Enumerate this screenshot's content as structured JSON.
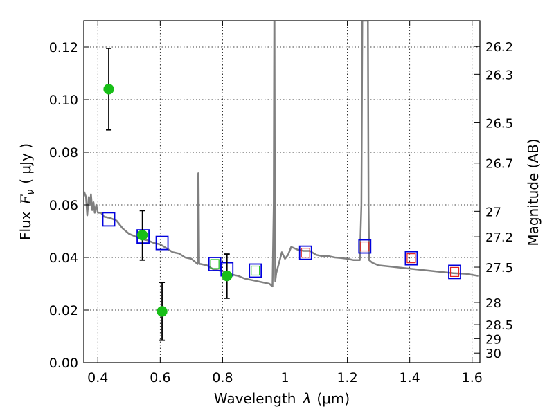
{
  "chart_data": {
    "type": "scatter",
    "title": "",
    "xlabel": "Wavelength",
    "xlabel_symbol": "λ",
    "xlabel_unit": "(μm)",
    "ylabel": "Flux",
    "ylabel_symbol": "F",
    "ylabel_sub": "ν",
    "ylabel_unit": "( μJy )",
    "y2label": "Magnitude (AB)",
    "xlim": [
      0.355,
      1.625
    ],
    "ylim": [
      0.0,
      0.13
    ],
    "grid": true,
    "xticks": [
      0.4,
      0.6,
      0.8,
      1.0,
      1.2,
      1.4,
      1.6
    ],
    "xtick_labels": [
      "0.4",
      "0.6",
      "0.8",
      "1",
      "1.2",
      "1.4",
      "1.6"
    ],
    "yticks": [
      0.0,
      0.02,
      0.04,
      0.06,
      0.08,
      0.1,
      0.12
    ],
    "ytick_labels": [
      "0.00",
      "0.02",
      "0.04",
      "0.06",
      "0.08",
      "0.10",
      "0.12"
    ],
    "mag_ticks": [
      "26.2",
      "26.3",
      "26.5",
      "26.7",
      "27",
      "27.2",
      "27.5",
      "28",
      "28.5",
      "29",
      "30"
    ],
    "series": [
      {
        "name": "photometry",
        "marker": "circle",
        "color": "#18bf18",
        "points": [
          {
            "x": 0.435,
            "y": 0.104,
            "yerr_low": 0.0885,
            "yerr_high": 0.1195
          },
          {
            "x": 0.543,
            "y": 0.0485,
            "yerr_low": 0.039,
            "yerr_high": 0.0578
          },
          {
            "x": 0.606,
            "y": 0.0195,
            "yerr_low": 0.0085,
            "yerr_high": 0.0305
          },
          {
            "x": 0.814,
            "y": 0.033,
            "yerr_low": 0.0245,
            "yerr_high": 0.0413
          }
        ]
      },
      {
        "name": "model_photometry",
        "marker": "square",
        "color": "#0000dd",
        "points": [
          {
            "x": 0.435,
            "y": 0.0545
          },
          {
            "x": 0.545,
            "y": 0.048
          },
          {
            "x": 0.606,
            "y": 0.0455
          },
          {
            "x": 0.775,
            "y": 0.0375
          },
          {
            "x": 0.814,
            "y": 0.0355
          },
          {
            "x": 0.905,
            "y": 0.035
          },
          {
            "x": 1.066,
            "y": 0.0418
          },
          {
            "x": 1.256,
            "y": 0.0442
          },
          {
            "x": 1.405,
            "y": 0.0397
          },
          {
            "x": 1.544,
            "y": 0.0345
          }
        ]
      },
      {
        "name": "inner_square_green",
        "marker": "small-square",
        "color": "#18bf18",
        "points": [
          {
            "x": 0.775,
            "y": 0.0375
          },
          {
            "x": 0.905,
            "y": 0.035
          }
        ]
      },
      {
        "name": "inner_square_red",
        "marker": "small-square",
        "color": "#e02020",
        "points": [
          {
            "x": 1.066,
            "y": 0.0418
          },
          {
            "x": 1.256,
            "y": 0.0442
          },
          {
            "x": 1.405,
            "y": 0.0397
          },
          {
            "x": 1.544,
            "y": 0.0345
          }
        ]
      },
      {
        "name": "model_spectrum",
        "marker": "line",
        "color": "#808080",
        "x": [
          0.356,
          0.362,
          0.366,
          0.371,
          0.374,
          0.378,
          0.382,
          0.386,
          0.39,
          0.395,
          0.4,
          0.41,
          0.42,
          0.44,
          0.46,
          0.48,
          0.5,
          0.52,
          0.54,
          0.56,
          0.58,
          0.6,
          0.62,
          0.64,
          0.66,
          0.68,
          0.7,
          0.715,
          0.72,
          0.722,
          0.723,
          0.725,
          0.727,
          0.73,
          0.75,
          0.77,
          0.79,
          0.81,
          0.83,
          0.85,
          0.87,
          0.89,
          0.91,
          0.93,
          0.95,
          0.96,
          0.964,
          0.9655,
          0.9665,
          0.9675,
          0.969,
          0.972,
          0.98,
          0.99,
          1.0,
          1.01,
          1.02,
          1.04,
          1.06,
          1.08,
          1.1,
          1.12,
          1.14,
          1.16,
          1.18,
          1.2,
          1.22,
          1.24,
          1.245,
          1.248,
          1.25,
          1.262,
          1.266,
          1.268,
          1.27,
          1.28,
          1.3,
          1.34,
          1.38,
          1.42,
          1.46,
          1.5,
          1.54,
          1.58,
          1.62
        ],
        "y": [
          0.065,
          0.063,
          0.056,
          0.063,
          0.06,
          0.064,
          0.058,
          0.061,
          0.057,
          0.06,
          0.057,
          0.057,
          0.0555,
          0.055,
          0.054,
          0.051,
          0.049,
          0.048,
          0.047,
          0.0465,
          0.0455,
          0.045,
          0.0435,
          0.042,
          0.0415,
          0.04,
          0.0395,
          0.038,
          0.0375,
          0.072,
          0.072,
          0.038,
          0.0375,
          0.0375,
          0.037,
          0.0355,
          0.035,
          0.0345,
          0.0335,
          0.033,
          0.032,
          0.0315,
          0.031,
          0.0305,
          0.03,
          0.029,
          0.06,
          0.13,
          0.13,
          0.06,
          0.031,
          0.034,
          0.0375,
          0.042,
          0.0395,
          0.041,
          0.044,
          0.043,
          0.0425,
          0.0425,
          0.041,
          0.0405,
          0.0405,
          0.04,
          0.0398,
          0.0395,
          0.039,
          0.039,
          0.06,
          0.13,
          0.13,
          0.13,
          0.13,
          0.06,
          0.039,
          0.038,
          0.037,
          0.0365,
          0.036,
          0.0355,
          0.035,
          0.0345,
          0.034,
          0.0338,
          0.033
        ]
      }
    ]
  }
}
